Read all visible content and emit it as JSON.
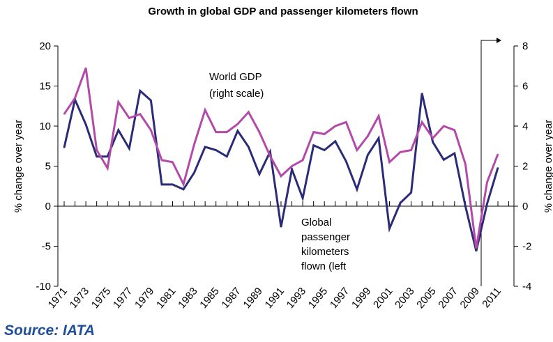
{
  "chart_data": {
    "type": "line",
    "title": "Growth in global GDP and passenger kilometers flown",
    "left_axis": {
      "label": "% change over year",
      "ylim": [
        -10,
        20
      ],
      "ticks": [
        "20",
        "15",
        "10",
        "5",
        "0",
        "-5",
        "-10"
      ]
    },
    "right_axis": {
      "label": "% change over year",
      "ylim": [
        -4,
        8
      ],
      "ticks": [
        "8",
        "6",
        "4",
        "2",
        "0",
        "-2",
        "-4"
      ]
    },
    "x": [
      1971,
      1972,
      1973,
      1974,
      1975,
      1976,
      1977,
      1978,
      1979,
      1980,
      1981,
      1982,
      1983,
      1984,
      1985,
      1986,
      1987,
      1988,
      1989,
      1990,
      1991,
      1992,
      1993,
      1994,
      1995,
      1996,
      1997,
      1998,
      1999,
      2000,
      2001,
      2002,
      2003,
      2004,
      2005,
      2006,
      2007,
      2008,
      2009,
      2010,
      2011,
      2012
    ],
    "x_tick_labels": [
      "1971",
      "1973",
      "1975",
      "1977",
      "1979",
      "1981",
      "1983",
      "1985",
      "1987",
      "1989",
      "1991",
      "1993",
      "1995",
      "1997",
      "1999",
      "2001",
      "2003",
      "2005",
      "2007",
      "2009",
      "2011"
    ],
    "series": [
      {
        "name": "Global passenger kilometers flown (left",
        "axis": "left",
        "color": "#2b2b78",
        "values": [
          7.3,
          13.3,
          10.2,
          6.2,
          6.2,
          9.5,
          7.2,
          14.4,
          13.2,
          2.7,
          2.7,
          2.1,
          4.2,
          7.4,
          7.0,
          6.2,
          9.4,
          7.4,
          4.0,
          6.8,
          -2.6,
          4.6,
          1.0,
          7.6,
          7.0,
          8.1,
          5.6,
          2.1,
          6.4,
          8.5,
          -2.8,
          0.4,
          1.7,
          14.1,
          8.0,
          5.8,
          6.6,
          0.0,
          -5.6,
          0.3,
          4.8,
          null
        ]
      },
      {
        "name": "World GDP (right scale)",
        "axis": "right",
        "color": "#b34aa8",
        "values": [
          4.6,
          5.4,
          6.9,
          2.8,
          1.9,
          5.2,
          4.4,
          4.6,
          3.8,
          2.3,
          2.2,
          1.1,
          3.1,
          4.8,
          3.7,
          3.7,
          4.1,
          4.7,
          3.7,
          2.5,
          1.5,
          2.0,
          2.3,
          3.7,
          3.6,
          4.0,
          4.2,
          2.8,
          3.5,
          4.5,
          2.2,
          2.7,
          2.8,
          4.2,
          3.4,
          4.0,
          3.8,
          2.1,
          -2.1,
          1.2,
          2.6,
          null
        ]
      }
    ],
    "annotations": {
      "gdp": [
        "World GDP",
        "(right scale)"
      ],
      "pkm": [
        "Global",
        "passenger",
        "kilometers",
        "flown (left"
      ]
    },
    "grid": false
  },
  "source": "Source: IATA"
}
